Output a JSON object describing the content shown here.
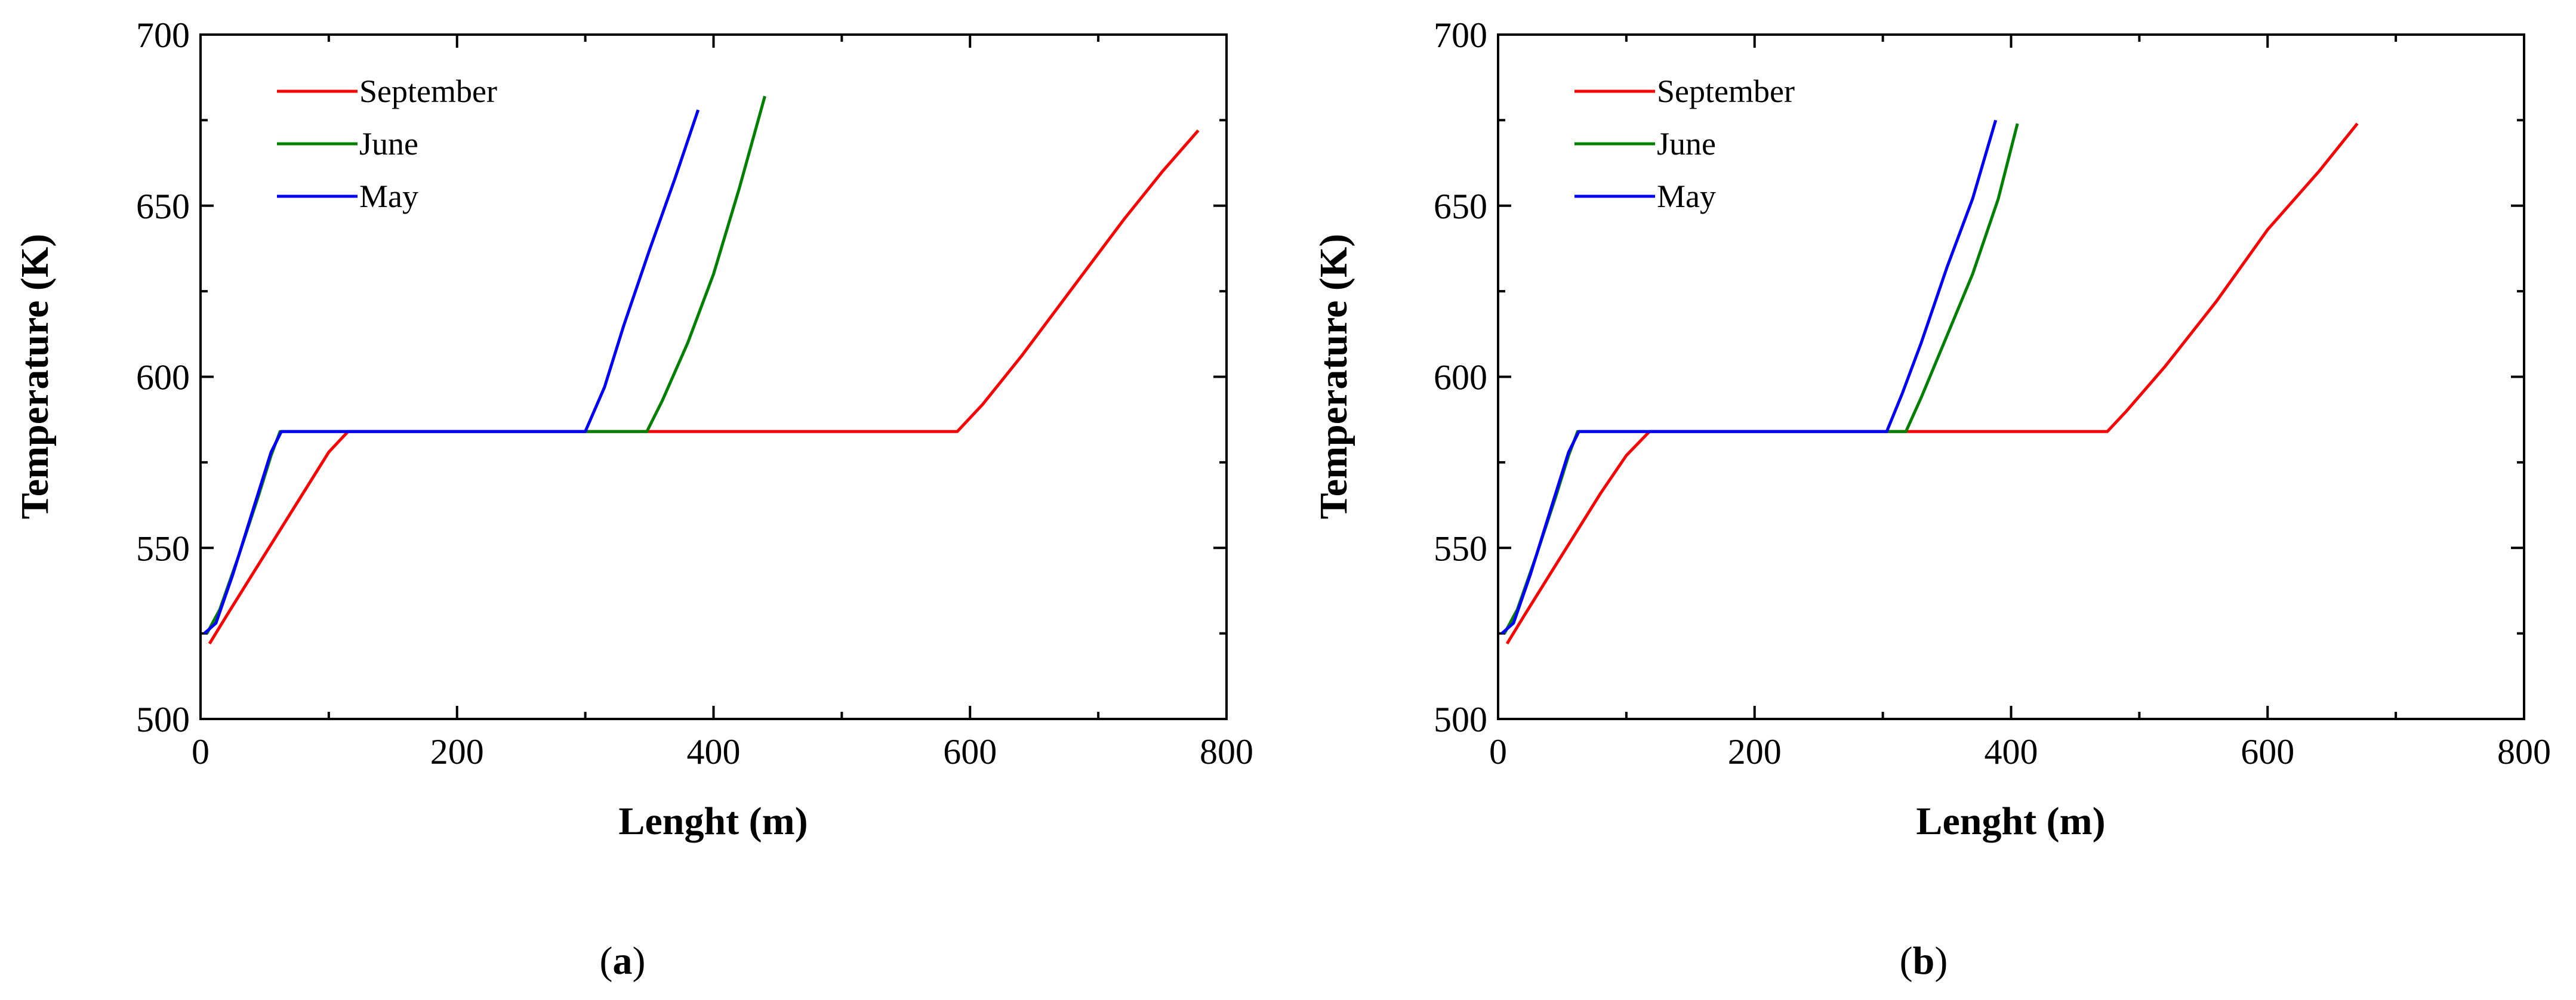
{
  "chart_data": [
    {
      "type": "line",
      "panel_label": "a",
      "xlabel": "Lenght (m)",
      "ylabel": "Temperature (K)",
      "xlim": [
        0,
        800
      ],
      "ylim": [
        500,
        700
      ],
      "xticks": [
        0,
        200,
        400,
        600,
        800
      ],
      "yticks": [
        500,
        550,
        600,
        650,
        700
      ],
      "legend_position": "top-left",
      "series": [
        {
          "name": "September",
          "color": "#ff0000",
          "points": [
            [
              7,
              522
            ],
            [
              20,
              530
            ],
            [
              40,
              542
            ],
            [
              60,
              554
            ],
            [
              80,
              566
            ],
            [
              100,
              578
            ],
            [
              115,
              584
            ],
            [
              590,
              584
            ],
            [
              610,
              592
            ],
            [
              640,
              606
            ],
            [
              680,
              626
            ],
            [
              720,
              646
            ],
            [
              750,
              660
            ],
            [
              778,
              672
            ]
          ]
        },
        {
          "name": "June",
          "color": "#008000",
          "points": [
            [
              5,
              525
            ],
            [
              15,
              532
            ],
            [
              30,
              548
            ],
            [
              45,
              565
            ],
            [
              55,
              577
            ],
            [
              62,
              584
            ],
            [
              348,
              584
            ],
            [
              360,
              593
            ],
            [
              380,
              610
            ],
            [
              400,
              630
            ],
            [
              420,
              655
            ],
            [
              440,
              682
            ]
          ]
        },
        {
          "name": "May",
          "color": "#0000ff",
          "points": [
            [
              3,
              525
            ],
            [
              12,
              528
            ],
            [
              25,
              542
            ],
            [
              40,
              560
            ],
            [
              55,
              578
            ],
            [
              63,
              584
            ],
            [
              300,
              584
            ],
            [
              315,
              597
            ],
            [
              330,
              615
            ],
            [
              350,
              637
            ],
            [
              370,
              658
            ],
            [
              388,
              678
            ]
          ]
        }
      ]
    },
    {
      "type": "line",
      "panel_label": "b",
      "xlabel": "Lenght (m)",
      "ylabel": "Temperature (K)",
      "xlim": [
        0,
        800
      ],
      "ylim": [
        500,
        700
      ],
      "xticks": [
        0,
        200,
        400,
        600,
        800
      ],
      "yticks": [
        500,
        550,
        600,
        650,
        700
      ],
      "legend_position": "top-left",
      "series": [
        {
          "name": "September",
          "color": "#ff0000",
          "points": [
            [
              7,
              522
            ],
            [
              20,
              530
            ],
            [
              40,
              542
            ],
            [
              60,
              554
            ],
            [
              80,
              566
            ],
            [
              100,
              577
            ],
            [
              118,
              584
            ],
            [
              475,
              584
            ],
            [
              490,
              590
            ],
            [
              520,
              603
            ],
            [
              560,
              622
            ],
            [
              600,
              643
            ],
            [
              640,
              660
            ],
            [
              670,
              674
            ]
          ]
        },
        {
          "name": "June",
          "color": "#008000",
          "points": [
            [
              5,
              525
            ],
            [
              15,
              532
            ],
            [
              30,
              548
            ],
            [
              45,
              565
            ],
            [
              55,
              577
            ],
            [
              62,
              584
            ],
            [
              318,
              584
            ],
            [
              330,
              594
            ],
            [
              350,
              612
            ],
            [
              370,
              630
            ],
            [
              390,
              652
            ],
            [
              405,
              674
            ]
          ]
        },
        {
          "name": "May",
          "color": "#0000ff",
          "points": [
            [
              3,
              525
            ],
            [
              12,
              528
            ],
            [
              25,
              542
            ],
            [
              40,
              560
            ],
            [
              55,
              578
            ],
            [
              63,
              584
            ],
            [
              303,
              584
            ],
            [
              315,
              595
            ],
            [
              330,
              610
            ],
            [
              350,
              632
            ],
            [
              370,
              652
            ],
            [
              388,
              675
            ]
          ]
        }
      ]
    }
  ]
}
